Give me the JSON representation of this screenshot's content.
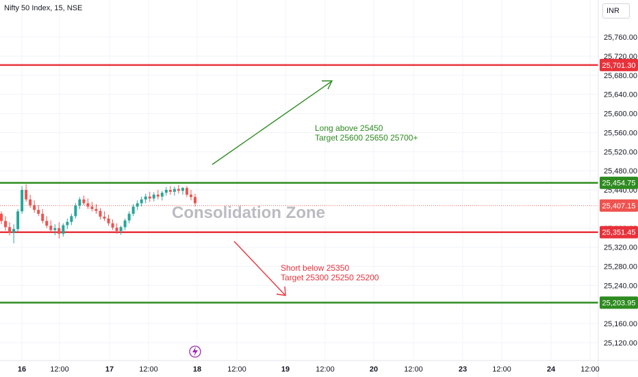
{
  "header": {
    "symbol": "Nifty 50 Index, 15, NSE",
    "currency": "INR"
  },
  "colors": {
    "green": "#2e8b20",
    "red": "#e8313a",
    "up": "#26a69a",
    "down": "#ef5350",
    "axis_text": "#131722"
  },
  "icons": {
    "bottom_badge": "lightning-icon"
  },
  "chart_data": {
    "type": "candlestick",
    "title": "Nifty 50 Index, 15, NSE",
    "ylim": [
      25100,
      25800
    ],
    "y_ticks": [
      "25,760.00",
      "25,720.00",
      "25,680.00",
      "25,640.00",
      "25,600.00",
      "25,560.00",
      "25,520.00",
      "25,480.00",
      "25,440.00",
      "25,360.00",
      "25,320.00",
      "25,280.00",
      "25,240.00",
      "25,160.00",
      "25,120.00"
    ],
    "x_ticks": [
      "16",
      "12:00",
      "17",
      "12:00",
      "18",
      "12:00",
      "19",
      "12:00",
      "20",
      "12:00",
      "23",
      "12:00",
      "24",
      "12:00"
    ],
    "x_ticks_bold": [
      "16",
      "17",
      "18",
      "19",
      "20",
      "23",
      "24"
    ],
    "grid": true,
    "horizontal_levels": [
      {
        "value": 25701.3,
        "label": "25,701.30",
        "color": "#e8313a"
      },
      {
        "value": 25454.75,
        "label": "25,454.75",
        "color": "#2e8b20"
      },
      {
        "value": 25407.15,
        "label": "25,407.15",
        "color": "#ef5350",
        "dotted": true
      },
      {
        "value": 25351.45,
        "label": "25,351.45",
        "color": "#e8313a"
      },
      {
        "value": 25203.95,
        "label": "25,203.95",
        "color": "#2e8b20"
      }
    ],
    "annotations": {
      "zone": "Consolidation Zone",
      "long_line1": "Long above 25450",
      "long_line2": "Target 25600 25650 25700+",
      "short_line1": "Short below 25350",
      "short_line2": "Target 25300 25250 25200"
    },
    "candles": [
      [
        25390,
        25395,
        25368,
        25375
      ],
      [
        25375,
        25385,
        25355,
        25362
      ],
      [
        25362,
        25372,
        25345,
        25350
      ],
      [
        25350,
        25368,
        25328,
        25358
      ],
      [
        25358,
        25400,
        25352,
        25395
      ],
      [
        25395,
        25448,
        25390,
        25440
      ],
      [
        25440,
        25452,
        25415,
        25420
      ],
      [
        25420,
        25430,
        25402,
        25408
      ],
      [
        25408,
        25418,
        25392,
        25398
      ],
      [
        25398,
        25408,
        25385,
        25390
      ],
      [
        25390,
        25400,
        25370,
        25375
      ],
      [
        25375,
        25385,
        25360,
        25365
      ],
      [
        25365,
        25376,
        25352,
        25356
      ],
      [
        25356,
        25368,
        25345,
        25360
      ],
      [
        25360,
        25372,
        25338,
        25348
      ],
      [
        25348,
        25370,
        25342,
        25366
      ],
      [
        25366,
        25380,
        25358,
        25373
      ],
      [
        25373,
        25390,
        25366,
        25385
      ],
      [
        25385,
        25412,
        25380,
        25407
      ],
      [
        25407,
        25425,
        25400,
        25420
      ],
      [
        25420,
        25428,
        25408,
        25412
      ],
      [
        25412,
        25422,
        25400,
        25405
      ],
      [
        25405,
        25415,
        25395,
        25400
      ],
      [
        25400,
        25410,
        25390,
        25396
      ],
      [
        25396,
        25402,
        25378,
        25384
      ],
      [
        25384,
        25395,
        25375,
        25380
      ],
      [
        25380,
        25388,
        25365,
        25370
      ],
      [
        25370,
        25378,
        25356,
        25361
      ],
      [
        25361,
        25370,
        25348,
        25354
      ],
      [
        25354,
        25365,
        25346,
        25362
      ],
      [
        25362,
        25380,
        25356,
        25376
      ],
      [
        25376,
        25395,
        25370,
        25390
      ],
      [
        25390,
        25410,
        25385,
        25405
      ],
      [
        25405,
        25418,
        25398,
        25412
      ],
      [
        25412,
        25426,
        25405,
        25420
      ],
      [
        25420,
        25432,
        25412,
        25426
      ],
      [
        25426,
        25436,
        25415,
        25422
      ],
      [
        25422,
        25435,
        25416,
        25430
      ],
      [
        25430,
        25440,
        25420,
        25426
      ],
      [
        25426,
        25438,
        25418,
        25434
      ],
      [
        25434,
        25446,
        25428,
        25440
      ],
      [
        25440,
        25448,
        25430,
        25436
      ],
      [
        25436,
        25447,
        25428,
        25442
      ],
      [
        25442,
        25450,
        25432,
        25438
      ],
      [
        25438,
        25446,
        25430,
        25444
      ],
      [
        25444,
        25448,
        25425,
        25430
      ],
      [
        25430,
        25440,
        25418,
        25425
      ],
      [
        25425,
        25432,
        25405,
        25412
      ]
    ]
  }
}
